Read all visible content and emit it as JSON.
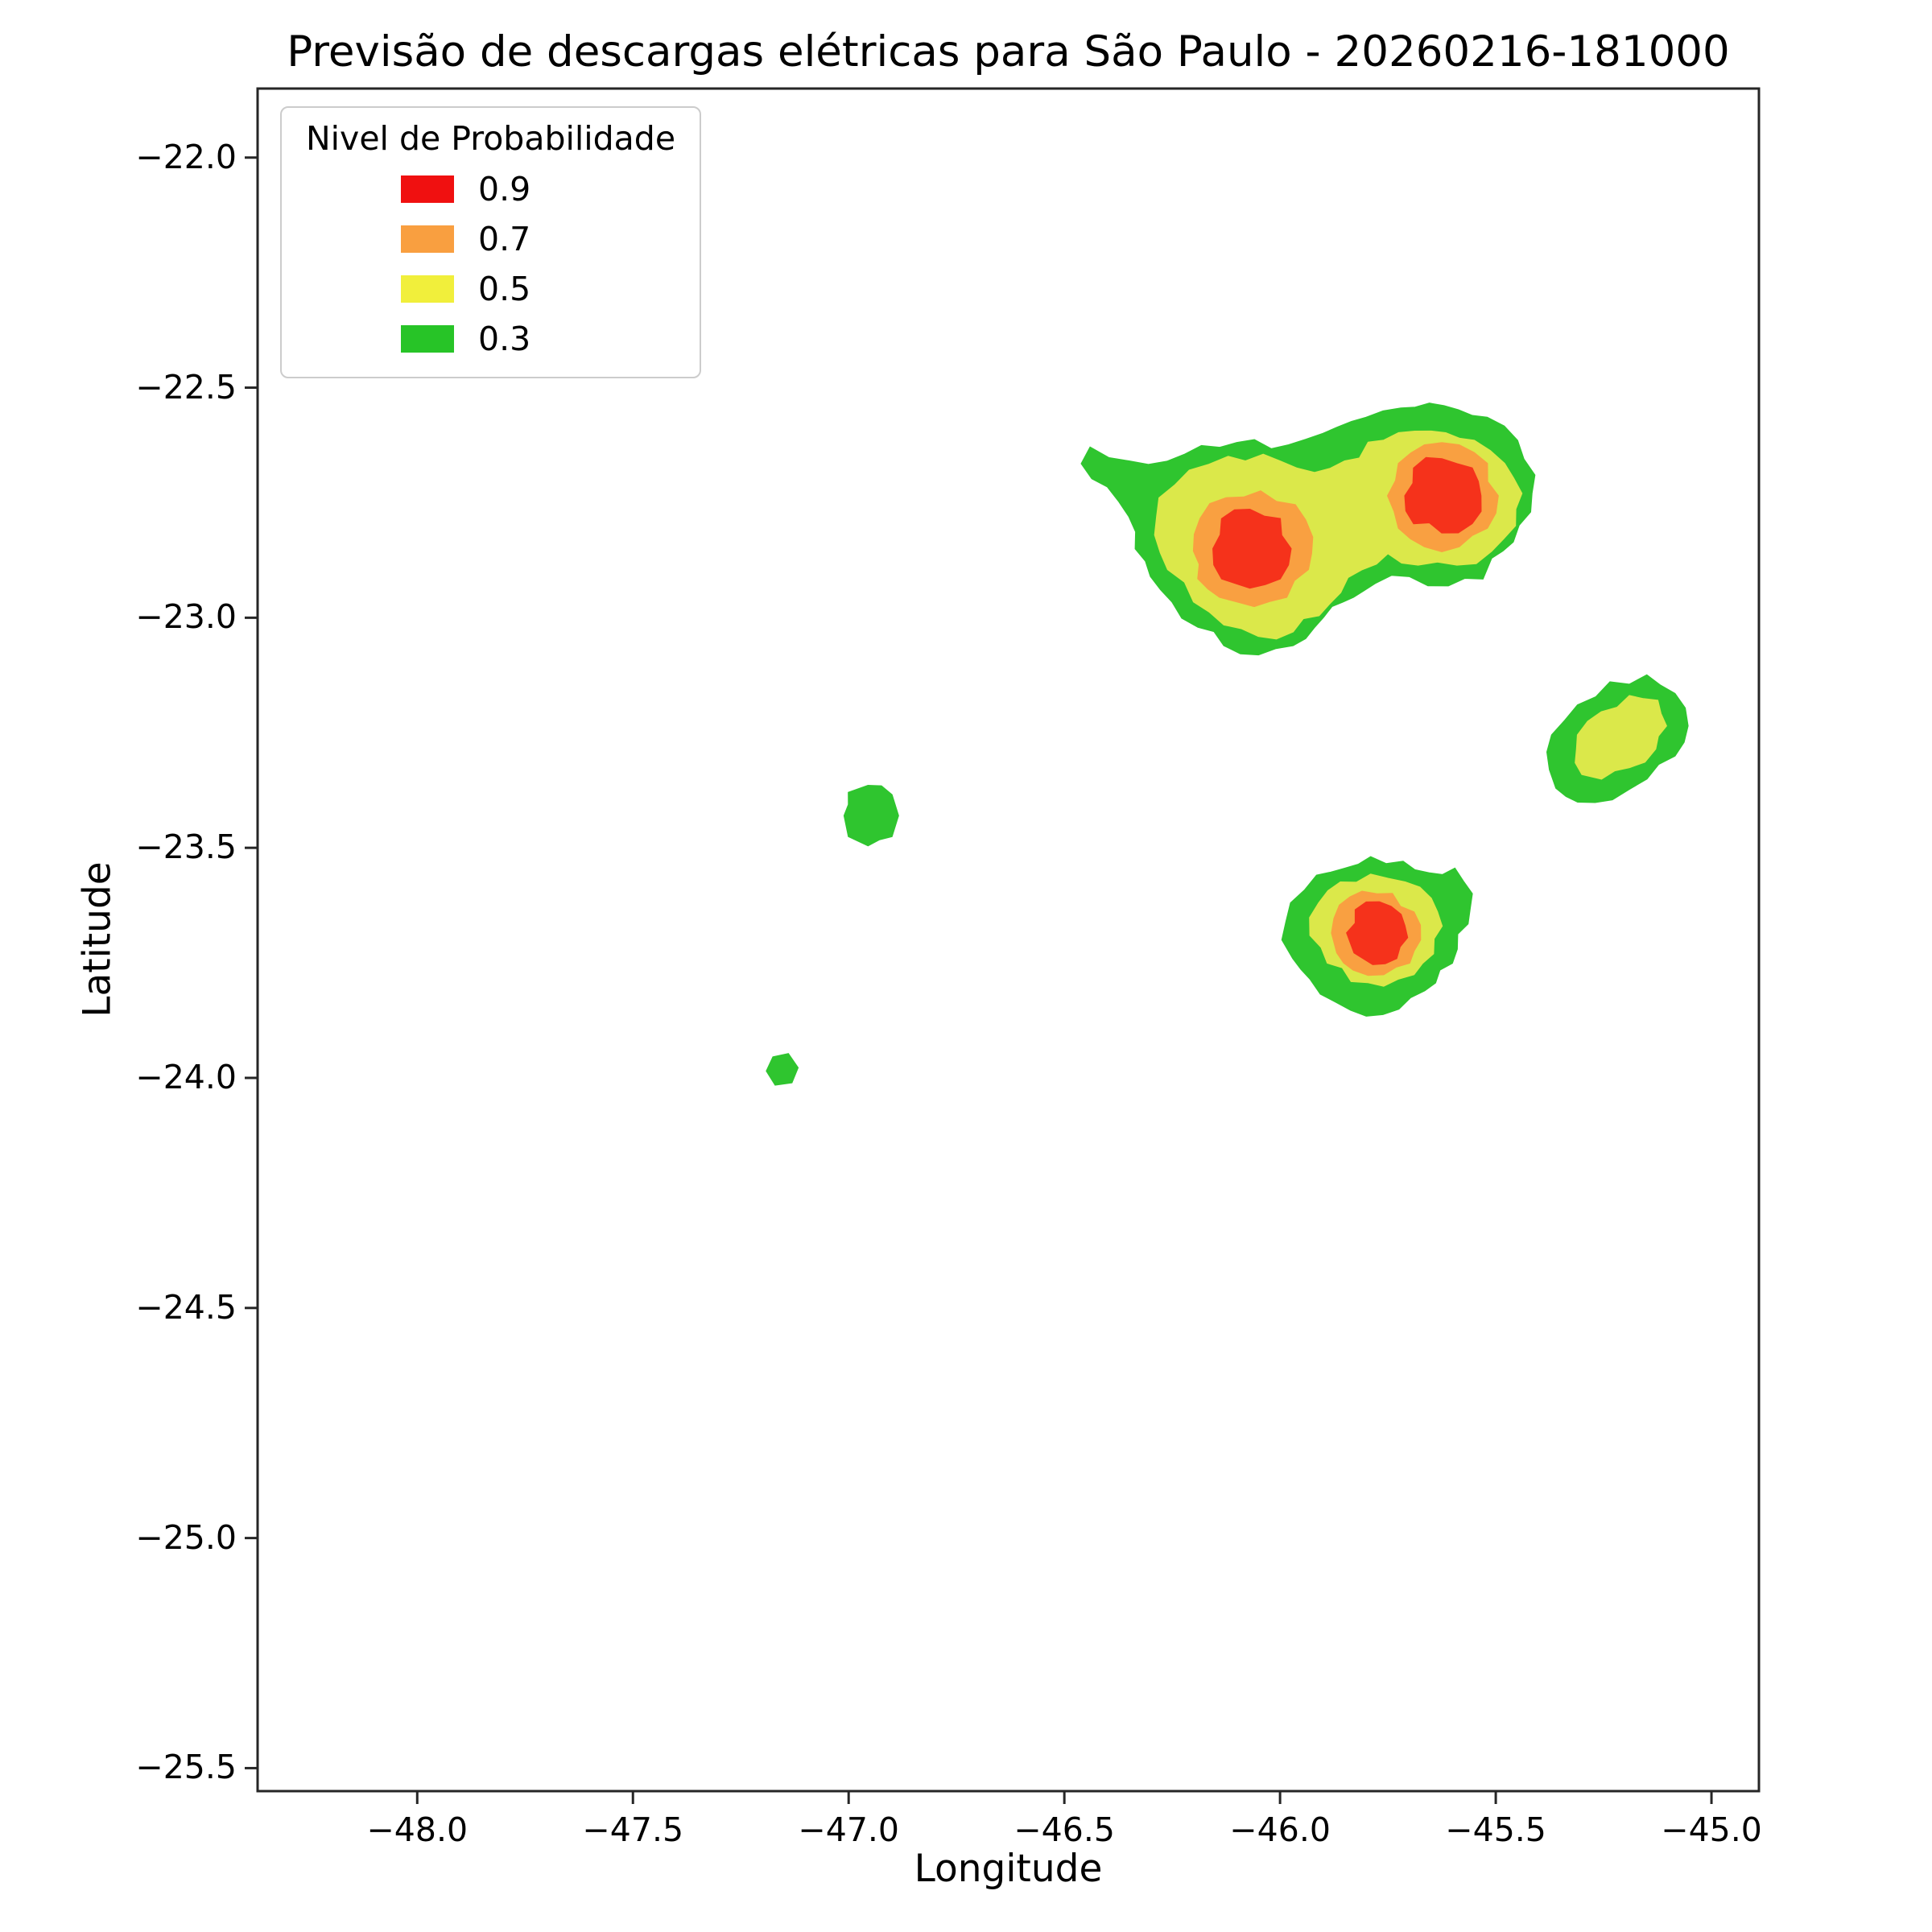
{
  "chart_data": {
    "type": "contour",
    "title": "Previsão de descargas elétricas para São Paulo - 20260216-181000",
    "xlabel": "Longitude",
    "ylabel": "Latitude",
    "xlim": [
      -48.37,
      -44.89
    ],
    "ylim": [
      -25.55,
      -21.85
    ],
    "grid": false,
    "xticks": {
      "values": [
        -48.0,
        -47.5,
        -47.0,
        -46.5,
        -46.0,
        -45.5,
        -45.0
      ],
      "labels": [
        "−48.0",
        "−47.5",
        "−47.0",
        "−46.5",
        "−46.0",
        "−45.5",
        "−45.0"
      ]
    },
    "yticks": {
      "values": [
        -22.0,
        -22.5,
        -23.0,
        -23.5,
        -24.0,
        -24.5,
        -25.0,
        -25.5
      ],
      "labels": [
        "−22.0",
        "−22.5",
        "−23.0",
        "−23.5",
        "−24.0",
        "−24.5",
        "−25.0",
        "−25.5"
      ]
    },
    "legend": {
      "title": "Nivel de Probabilidade",
      "position": "upper left",
      "items": [
        {
          "label": "0.9",
          "color": "#f01010"
        },
        {
          "label": "0.7",
          "color": "#f99f40"
        },
        {
          "label": "0.5",
          "color": "#f1ef3b"
        },
        {
          "label": "0.3",
          "color": "#27c427"
        }
      ]
    },
    "levels": [
      {
        "value": 0.3,
        "color": "#2fc52f"
      },
      {
        "value": 0.5,
        "color": "#dbe84a"
      },
      {
        "value": 0.7,
        "color": "#f9a041"
      },
      {
        "value": 0.9,
        "color": "#f5321b"
      }
    ],
    "contours": [
      {
        "id": "north-complex-green",
        "level": 0.3,
        "points": [
          [
            -46.44,
            -22.63
          ],
          [
            -46.35,
            -22.66
          ],
          [
            -46.22,
            -22.645
          ],
          [
            -46.1,
            -22.62
          ],
          [
            -45.98,
            -22.625
          ],
          [
            -45.9,
            -22.6
          ],
          [
            -45.8,
            -22.565
          ],
          [
            -45.72,
            -22.545
          ],
          [
            -45.62,
            -22.54
          ],
          [
            -45.52,
            -22.565
          ],
          [
            -45.45,
            -22.615
          ],
          [
            -45.41,
            -22.69
          ],
          [
            -45.42,
            -22.77
          ],
          [
            -45.46,
            -22.835
          ],
          [
            -45.51,
            -22.87
          ],
          [
            -45.53,
            -22.915
          ],
          [
            -45.61,
            -22.93
          ],
          [
            -45.7,
            -22.91
          ],
          [
            -45.78,
            -22.925
          ],
          [
            -45.83,
            -22.955
          ],
          [
            -45.88,
            -22.975
          ],
          [
            -45.92,
            -23.02
          ],
          [
            -45.97,
            -23.06
          ],
          [
            -46.05,
            -23.08
          ],
          [
            -46.13,
            -23.06
          ],
          [
            -46.19,
            -23.02
          ],
          [
            -46.25,
            -22.965
          ],
          [
            -46.3,
            -22.91
          ],
          [
            -46.335,
            -22.85
          ],
          [
            -46.35,
            -22.78
          ],
          [
            -46.4,
            -22.715
          ],
          [
            -46.46,
            -22.665
          ]
        ]
      },
      {
        "id": "north-complex-yellow",
        "level": 0.5,
        "points": [
          [
            -46.29,
            -22.82
          ],
          [
            -46.28,
            -22.74
          ],
          [
            -46.21,
            -22.68
          ],
          [
            -46.12,
            -22.65
          ],
          [
            -46.0,
            -22.66
          ],
          [
            -45.92,
            -22.685
          ],
          [
            -45.85,
            -22.66
          ],
          [
            -45.76,
            -22.615
          ],
          [
            -45.65,
            -22.595
          ],
          [
            -45.55,
            -22.615
          ],
          [
            -45.48,
            -22.665
          ],
          [
            -45.44,
            -22.73
          ],
          [
            -45.455,
            -22.8
          ],
          [
            -45.51,
            -22.855
          ],
          [
            -45.59,
            -22.885
          ],
          [
            -45.68,
            -22.885
          ],
          [
            -45.75,
            -22.86
          ],
          [
            -45.81,
            -22.895
          ],
          [
            -45.86,
            -22.945
          ],
          [
            -45.91,
            -22.995
          ],
          [
            -45.97,
            -23.03
          ],
          [
            -46.05,
            -23.04
          ],
          [
            -46.13,
            -23.015
          ],
          [
            -46.2,
            -22.965
          ],
          [
            -46.26,
            -22.895
          ]
        ]
      },
      {
        "id": "north-west-orange",
        "level": 0.7,
        "points": [
          [
            -46.2,
            -22.855
          ],
          [
            -46.185,
            -22.785
          ],
          [
            -46.125,
            -22.74
          ],
          [
            -46.045,
            -22.725
          ],
          [
            -45.965,
            -22.755
          ],
          [
            -45.925,
            -22.825
          ],
          [
            -45.935,
            -22.895
          ],
          [
            -45.985,
            -22.955
          ],
          [
            -46.06,
            -22.975
          ],
          [
            -46.14,
            -22.955
          ],
          [
            -46.19,
            -22.915
          ]
        ]
      },
      {
        "id": "north-west-red",
        "level": 0.9,
        "points": [
          [
            -46.155,
            -22.85
          ],
          [
            -46.135,
            -22.785
          ],
          [
            -46.07,
            -22.765
          ],
          [
            -46.0,
            -22.785
          ],
          [
            -45.975,
            -22.85
          ],
          [
            -46.0,
            -22.915
          ],
          [
            -46.07,
            -22.935
          ],
          [
            -46.135,
            -22.915
          ]
        ]
      },
      {
        "id": "north-east-orange",
        "level": 0.7,
        "points": [
          [
            -45.75,
            -22.735
          ],
          [
            -45.725,
            -22.665
          ],
          [
            -45.665,
            -22.625
          ],
          [
            -45.585,
            -22.625
          ],
          [
            -45.52,
            -22.665
          ],
          [
            -45.495,
            -22.735
          ],
          [
            -45.52,
            -22.805
          ],
          [
            -45.585,
            -22.845
          ],
          [
            -45.665,
            -22.845
          ],
          [
            -45.725,
            -22.805
          ]
        ]
      },
      {
        "id": "north-east-red",
        "level": 0.9,
        "points": [
          [
            -45.71,
            -22.735
          ],
          [
            -45.69,
            -22.675
          ],
          [
            -45.625,
            -22.655
          ],
          [
            -45.555,
            -22.675
          ],
          [
            -45.535,
            -22.735
          ],
          [
            -45.555,
            -22.795
          ],
          [
            -45.625,
            -22.815
          ],
          [
            -45.69,
            -22.795
          ]
        ]
      },
      {
        "id": "east-cell-green",
        "level": 0.3,
        "points": [
          [
            -45.375,
            -23.33
          ],
          [
            -45.37,
            -23.255
          ],
          [
            -45.31,
            -23.19
          ],
          [
            -45.235,
            -23.14
          ],
          [
            -45.15,
            -23.125
          ],
          [
            -45.085,
            -23.165
          ],
          [
            -45.055,
            -23.235
          ],
          [
            -45.085,
            -23.3
          ],
          [
            -45.15,
            -23.35
          ],
          [
            -45.23,
            -23.395
          ],
          [
            -45.31,
            -23.4
          ],
          [
            -45.36,
            -23.37
          ]
        ]
      },
      {
        "id": "east-cell-yellow",
        "level": 0.5,
        "points": [
          [
            -45.315,
            -23.315
          ],
          [
            -45.31,
            -23.255
          ],
          [
            -45.255,
            -23.205
          ],
          [
            -45.19,
            -23.17
          ],
          [
            -45.125,
            -23.18
          ],
          [
            -45.105,
            -23.235
          ],
          [
            -45.13,
            -23.285
          ],
          [
            -45.19,
            -23.325
          ],
          [
            -45.255,
            -23.35
          ],
          [
            -45.3,
            -23.34
          ]
        ]
      },
      {
        "id": "mid-small-green",
        "level": 0.3,
        "points": [
          [
            -47.01,
            -23.43
          ],
          [
            -47.0,
            -23.38
          ],
          [
            -46.955,
            -23.365
          ],
          [
            -46.9,
            -23.385
          ],
          [
            -46.885,
            -23.43
          ],
          [
            -46.9,
            -23.475
          ],
          [
            -46.955,
            -23.495
          ],
          [
            -47.0,
            -23.475
          ]
        ]
      },
      {
        "id": "south-cell-green",
        "level": 0.3,
        "points": [
          [
            -45.995,
            -23.7
          ],
          [
            -45.975,
            -23.62
          ],
          [
            -45.915,
            -23.56
          ],
          [
            -45.85,
            -23.545
          ],
          [
            -45.79,
            -23.52
          ],
          [
            -45.715,
            -23.53
          ],
          [
            -45.655,
            -23.555
          ],
          [
            -45.595,
            -23.545
          ],
          [
            -45.555,
            -23.6
          ],
          [
            -45.565,
            -23.665
          ],
          [
            -45.59,
            -23.72
          ],
          [
            -45.63,
            -23.765
          ],
          [
            -45.665,
            -23.81
          ],
          [
            -45.725,
            -23.85
          ],
          [
            -45.8,
            -23.865
          ],
          [
            -45.87,
            -23.835
          ],
          [
            -45.93,
            -23.785
          ],
          [
            -45.97,
            -23.74
          ]
        ]
      },
      {
        "id": "south-cell-yellow",
        "level": 0.5,
        "points": [
          [
            -45.93,
            -23.69
          ],
          [
            -45.91,
            -23.62
          ],
          [
            -45.86,
            -23.575
          ],
          [
            -45.79,
            -23.558
          ],
          [
            -45.71,
            -23.575
          ],
          [
            -45.65,
            -23.61
          ],
          [
            -45.625,
            -23.67
          ],
          [
            -45.645,
            -23.73
          ],
          [
            -45.69,
            -23.775
          ],
          [
            -45.76,
            -23.8
          ],
          [
            -45.835,
            -23.79
          ],
          [
            -45.89,
            -23.75
          ]
        ]
      },
      {
        "id": "south-cell-orange",
        "level": 0.7,
        "points": [
          [
            -45.88,
            -23.685
          ],
          [
            -45.862,
            -23.625
          ],
          [
            -45.81,
            -23.595
          ],
          [
            -45.74,
            -23.6
          ],
          [
            -45.69,
            -23.64
          ],
          [
            -45.675,
            -23.7
          ],
          [
            -45.7,
            -23.75
          ],
          [
            -45.76,
            -23.775
          ],
          [
            -45.83,
            -23.765
          ],
          [
            -45.868,
            -23.728
          ]
        ]
      },
      {
        "id": "south-cell-red",
        "level": 0.9,
        "points": [
          [
            -45.845,
            -23.685
          ],
          [
            -45.825,
            -23.635
          ],
          [
            -45.77,
            -23.618
          ],
          [
            -45.72,
            -23.645
          ],
          [
            -45.705,
            -23.695
          ],
          [
            -45.73,
            -23.74
          ],
          [
            -45.785,
            -23.753
          ],
          [
            -45.828,
            -23.728
          ]
        ]
      },
      {
        "id": "southwest-tiny-green",
        "level": 0.3,
        "points": [
          [
            -47.19,
            -23.985
          ],
          [
            -47.175,
            -23.955
          ],
          [
            -47.14,
            -23.948
          ],
          [
            -47.118,
            -23.978
          ],
          [
            -47.132,
            -24.01
          ],
          [
            -47.17,
            -24.015
          ]
        ]
      }
    ]
  }
}
